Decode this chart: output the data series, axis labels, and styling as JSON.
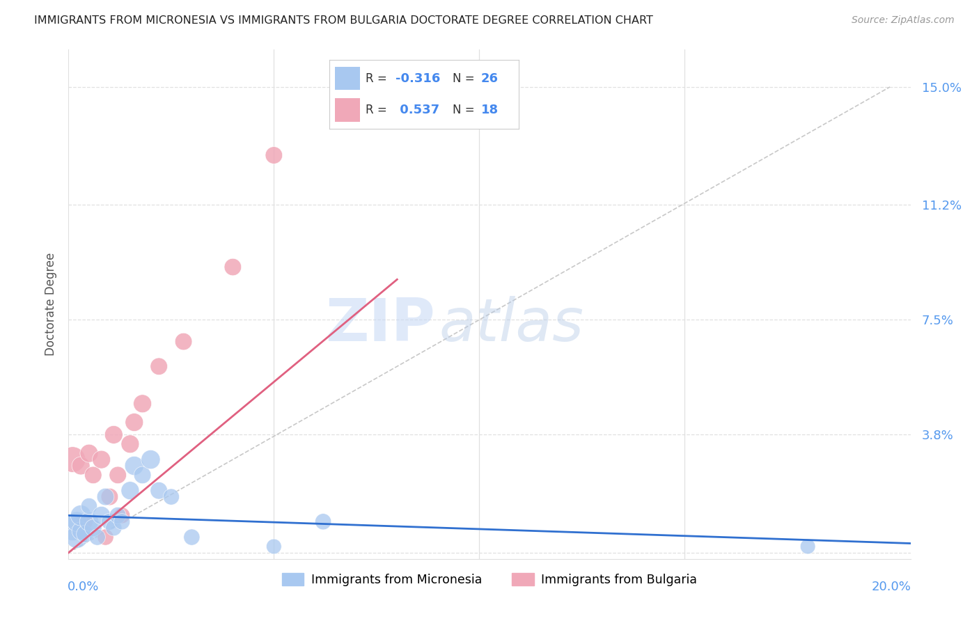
{
  "title": "IMMIGRANTS FROM MICRONESIA VS IMMIGRANTS FROM BULGARIA DOCTORATE DEGREE CORRELATION CHART",
  "source": "Source: ZipAtlas.com",
  "ylabel": "Doctorate Degree",
  "x_ticks": [
    0.0,
    0.05,
    0.1,
    0.15,
    0.2
  ],
  "y_ticks": [
    0.0,
    0.038,
    0.075,
    0.112,
    0.15
  ],
  "y_tick_labels_right": [
    "",
    "3.8%",
    "7.5%",
    "11.2%",
    "15.0%"
  ],
  "xlim": [
    0.0,
    0.205
  ],
  "ylim": [
    -0.002,
    0.162
  ],
  "background_color": "#ffffff",
  "grid_color": "#e0e0e0",
  "watermark_zip": "ZIP",
  "watermark_atlas": "atlas",
  "legend_r_blue": "-0.316",
  "legend_n_blue": "26",
  "legend_r_pink": "0.537",
  "legend_n_pink": "18",
  "blue_color": "#a8c8f0",
  "pink_color": "#f0a8b8",
  "blue_line_color": "#3070d0",
  "pink_line_color": "#e06080",
  "ref_line_color": "#c8c8c8",
  "micronesia_x": [
    0.001,
    0.002,
    0.002,
    0.003,
    0.003,
    0.004,
    0.005,
    0.005,
    0.006,
    0.007,
    0.008,
    0.009,
    0.01,
    0.011,
    0.012,
    0.013,
    0.015,
    0.016,
    0.018,
    0.02,
    0.022,
    0.025,
    0.03,
    0.05,
    0.062,
    0.18
  ],
  "micronesia_y": [
    0.008,
    0.005,
    0.01,
    0.007,
    0.012,
    0.006,
    0.01,
    0.015,
    0.008,
    0.005,
    0.012,
    0.018,
    0.01,
    0.008,
    0.012,
    0.01,
    0.02,
    0.028,
    0.025,
    0.03,
    0.02,
    0.018,
    0.005,
    0.002,
    0.01,
    0.002
  ],
  "micronesia_size": [
    200,
    150,
    120,
    100,
    130,
    90,
    110,
    80,
    90,
    80,
    100,
    90,
    85,
    80,
    85,
    80,
    100,
    110,
    90,
    110,
    90,
    80,
    80,
    70,
    80,
    70
  ],
  "bulgaria_x": [
    0.001,
    0.003,
    0.004,
    0.005,
    0.006,
    0.008,
    0.009,
    0.01,
    0.011,
    0.012,
    0.013,
    0.015,
    0.016,
    0.018,
    0.022,
    0.028,
    0.04,
    0.05
  ],
  "bulgaria_y": [
    0.03,
    0.028,
    0.01,
    0.032,
    0.025,
    0.03,
    0.005,
    0.018,
    0.038,
    0.025,
    0.012,
    0.035,
    0.042,
    0.048,
    0.06,
    0.068,
    0.092,
    0.128
  ],
  "bulgaria_size": [
    200,
    100,
    80,
    100,
    90,
    100,
    80,
    90,
    100,
    90,
    80,
    100,
    100,
    100,
    90,
    90,
    90,
    90
  ],
  "blue_trend_x": [
    0.0,
    0.205
  ],
  "blue_trend_y": [
    0.012,
    0.003
  ],
  "pink_trend_x": [
    0.0,
    0.08
  ],
  "pink_trend_y": [
    0.0,
    0.088
  ]
}
